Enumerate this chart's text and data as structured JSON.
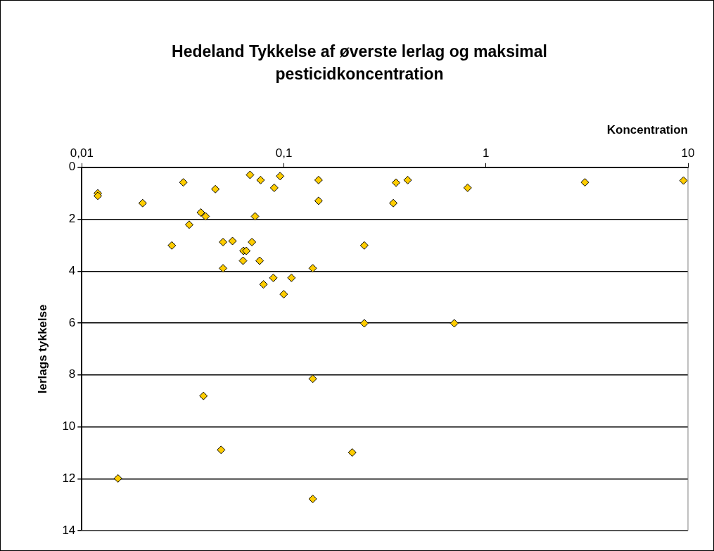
{
  "chart_data": {
    "type": "scatter",
    "title": "Hedeland Tykkelse af øverste lerlag og maksimal pesticidkoncentration",
    "xlabel": "Koncentration",
    "ylabel": "lerlags tykkelse",
    "log": "x",
    "grid": "y",
    "marker": "diamond",
    "legend": false,
    "xlim": [
      0.01,
      10
    ],
    "xticks": [
      {
        "value": 0.01,
        "label": "0,01"
      },
      {
        "value": 0.1,
        "label": "0,1"
      },
      1,
      10
    ],
    "ylim": [
      14,
      0
    ],
    "yticks": [
      0,
      2,
      4,
      6,
      8,
      10,
      12,
      14
    ],
    "series": [
      {
        "color": "#ffcc00",
        "x": [
          0.012,
          0.012,
          0.02,
          0.0318,
          0.0458,
          0.068,
          0.0767,
          0.0958,
          0.0896,
          0.0388,
          0.041,
          0.072,
          0.034,
          0.0279,
          0.05,
          0.0557,
          0.0695,
          0.0631,
          0.0652,
          0.0628,
          0.0759,
          0.05,
          0.0887,
          0.109,
          0.0793,
          0.0998,
          0.1485,
          0.359,
          0.41,
          0.812,
          0.1485,
          0.348,
          0.25,
          0.139,
          0.25,
          0.697,
          0.139,
          0.04,
          0.0489,
          0.218,
          0.0151,
          0.139,
          3.09,
          9.5
        ],
        "values": [
          1.0,
          1.1,
          1.38,
          0.58,
          0.84,
          0.29,
          0.49,
          0.34,
          0.79,
          1.74,
          1.89,
          1.89,
          2.21,
          3.01,
          2.88,
          2.84,
          2.88,
          3.22,
          3.22,
          3.6,
          3.6,
          3.89,
          4.26,
          4.26,
          4.51,
          4.89,
          0.49,
          0.59,
          0.49,
          0.79,
          1.29,
          1.38,
          3.01,
          3.89,
          6.01,
          6.01,
          8.15,
          8.81,
          10.89,
          10.99,
          11.99,
          12.78,
          0.58,
          0.51
        ]
      }
    ]
  }
}
